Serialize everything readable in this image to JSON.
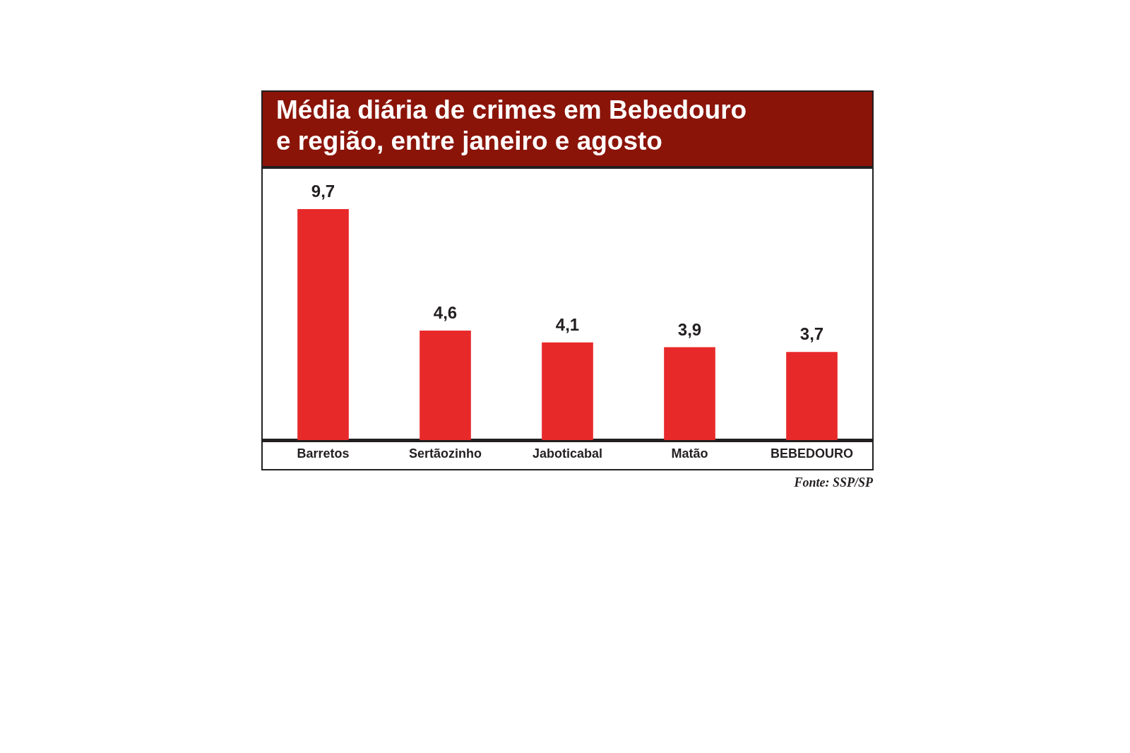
{
  "chart_data": {
    "type": "bar",
    "title": "Média diária de crimes em Bebedouro\ne região, entre janeiro e agosto",
    "categories": [
      "Barretos",
      "Sertãozinho",
      "Jaboticabal",
      "Matão",
      "BEBEDOURO"
    ],
    "values": [
      9.7,
      4.6,
      4.1,
      3.9,
      3.7
    ],
    "color": "#e8292a",
    "value_labels": [
      "9,7",
      "4,6",
      "4,1",
      "3,9",
      "3,7"
    ],
    "annotations": [
      "Fonte: SSP/SP"
    ]
  }
}
